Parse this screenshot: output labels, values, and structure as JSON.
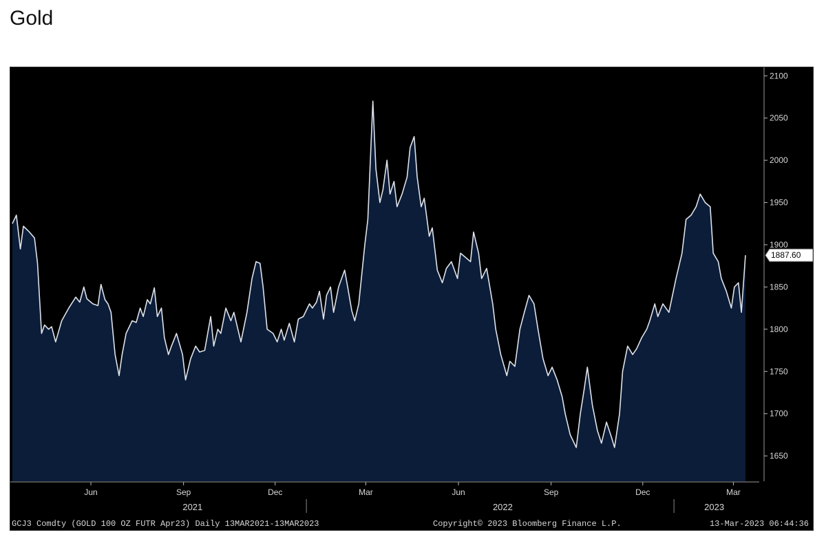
{
  "page": {
    "title": "Gold"
  },
  "chart_data": {
    "type": "area",
    "title": "Gold",
    "series": [
      {
        "values": [
          [
            "2021-03-15",
            1925
          ],
          [
            "2021-03-19",
            1935
          ],
          [
            "2021-03-23",
            1895
          ],
          [
            "2021-03-26",
            1922
          ],
          [
            "2021-04-01",
            1915
          ],
          [
            "2021-04-06",
            1908
          ],
          [
            "2021-04-09",
            1878
          ],
          [
            "2021-04-13",
            1795
          ],
          [
            "2021-04-16",
            1805
          ],
          [
            "2021-04-20",
            1800
          ],
          [
            "2021-04-23",
            1803
          ],
          [
            "2021-04-27",
            1785
          ],
          [
            "2021-05-03",
            1810
          ],
          [
            "2021-05-10",
            1825
          ],
          [
            "2021-05-17",
            1838
          ],
          [
            "2021-05-21",
            1832
          ],
          [
            "2021-05-25",
            1850
          ],
          [
            "2021-05-28",
            1836
          ],
          [
            "2021-06-03",
            1830
          ],
          [
            "2021-06-08",
            1828
          ],
          [
            "2021-06-11",
            1853
          ],
          [
            "2021-06-15",
            1835
          ],
          [
            "2021-06-18",
            1830
          ],
          [
            "2021-06-21",
            1820
          ],
          [
            "2021-06-25",
            1770
          ],
          [
            "2021-06-29",
            1745
          ],
          [
            "2021-07-02",
            1770
          ],
          [
            "2021-07-06",
            1795
          ],
          [
            "2021-07-12",
            1810
          ],
          [
            "2021-07-16",
            1808
          ],
          [
            "2021-07-20",
            1825
          ],
          [
            "2021-07-23",
            1815
          ],
          [
            "2021-07-27",
            1835
          ],
          [
            "2021-07-30",
            1830
          ],
          [
            "2021-08-03",
            1849
          ],
          [
            "2021-08-06",
            1815
          ],
          [
            "2021-08-10",
            1825
          ],
          [
            "2021-08-13",
            1790
          ],
          [
            "2021-08-17",
            1770
          ],
          [
            "2021-08-20",
            1780
          ],
          [
            "2021-08-25",
            1795
          ],
          [
            "2021-08-31",
            1770
          ],
          [
            "2021-09-03",
            1740
          ],
          [
            "2021-09-08",
            1765
          ],
          [
            "2021-09-13",
            1780
          ],
          [
            "2021-09-17",
            1773
          ],
          [
            "2021-09-22",
            1775
          ],
          [
            "2021-09-28",
            1815
          ],
          [
            "2021-10-01",
            1780
          ],
          [
            "2021-10-05",
            1800
          ],
          [
            "2021-10-08",
            1795
          ],
          [
            "2021-10-13",
            1825
          ],
          [
            "2021-10-18",
            1810
          ],
          [
            "2021-10-21",
            1820
          ],
          [
            "2021-10-25",
            1800
          ],
          [
            "2021-10-28",
            1785
          ],
          [
            "2021-11-03",
            1820
          ],
          [
            "2021-11-08",
            1860
          ],
          [
            "2021-11-12",
            1880
          ],
          [
            "2021-11-16",
            1878
          ],
          [
            "2021-11-19",
            1850
          ],
          [
            "2021-11-23",
            1800
          ],
          [
            "2021-11-29",
            1795
          ],
          [
            "2021-12-03",
            1785
          ],
          [
            "2021-12-07",
            1800
          ],
          [
            "2021-12-10",
            1787
          ],
          [
            "2021-12-15",
            1807
          ],
          [
            "2021-12-20",
            1785
          ],
          [
            "2021-12-24",
            1812
          ],
          [
            "2021-12-29",
            1815
          ],
          [
            "2022-01-04",
            1830
          ],
          [
            "2022-01-07",
            1825
          ],
          [
            "2022-01-11",
            1832
          ],
          [
            "2022-01-14",
            1845
          ],
          [
            "2022-01-18",
            1812
          ],
          [
            "2022-01-21",
            1840
          ],
          [
            "2022-01-25",
            1850
          ],
          [
            "2022-01-28",
            1820
          ],
          [
            "2022-02-02",
            1850
          ],
          [
            "2022-02-08",
            1870
          ],
          [
            "2022-02-11",
            1850
          ],
          [
            "2022-02-15",
            1822
          ],
          [
            "2022-02-18",
            1810
          ],
          [
            "2022-02-22",
            1830
          ],
          [
            "2022-02-28",
            1900
          ],
          [
            "2022-03-03",
            1930
          ],
          [
            "2022-03-08",
            2070
          ],
          [
            "2022-03-11",
            1990
          ],
          [
            "2022-03-15",
            1950
          ],
          [
            "2022-03-18",
            1965
          ],
          [
            "2022-03-22",
            2000
          ],
          [
            "2022-03-25",
            1960
          ],
          [
            "2022-03-29",
            1975
          ],
          [
            "2022-04-01",
            1945
          ],
          [
            "2022-04-06",
            1960
          ],
          [
            "2022-04-11",
            1980
          ],
          [
            "2022-04-14",
            2015
          ],
          [
            "2022-04-18",
            2028
          ],
          [
            "2022-04-21",
            1980
          ],
          [
            "2022-04-25",
            1945
          ],
          [
            "2022-04-28",
            1955
          ],
          [
            "2022-05-03",
            1910
          ],
          [
            "2022-05-06",
            1920
          ],
          [
            "2022-05-11",
            1870
          ],
          [
            "2022-05-16",
            1855
          ],
          [
            "2022-05-20",
            1872
          ],
          [
            "2022-05-25",
            1880
          ],
          [
            "2022-05-31",
            1860
          ],
          [
            "2022-06-03",
            1890
          ],
          [
            "2022-06-08",
            1885
          ],
          [
            "2022-06-13",
            1880
          ],
          [
            "2022-06-16",
            1915
          ],
          [
            "2022-06-21",
            1890
          ],
          [
            "2022-06-24",
            1860
          ],
          [
            "2022-06-29",
            1872
          ],
          [
            "2022-07-05",
            1830
          ],
          [
            "2022-07-08",
            1800
          ],
          [
            "2022-07-13",
            1770
          ],
          [
            "2022-07-19",
            1745
          ],
          [
            "2022-07-22",
            1762
          ],
          [
            "2022-07-27",
            1756
          ],
          [
            "2022-08-01",
            1800
          ],
          [
            "2022-08-05",
            1818
          ],
          [
            "2022-08-10",
            1840
          ],
          [
            "2022-08-15",
            1830
          ],
          [
            "2022-08-19",
            1800
          ],
          [
            "2022-08-24",
            1765
          ],
          [
            "2022-08-29",
            1745
          ],
          [
            "2022-09-02",
            1755
          ],
          [
            "2022-09-07",
            1740
          ],
          [
            "2022-09-12",
            1720
          ],
          [
            "2022-09-15",
            1700
          ],
          [
            "2022-09-20",
            1675
          ],
          [
            "2022-09-26",
            1660
          ],
          [
            "2022-09-30",
            1700
          ],
          [
            "2022-10-04",
            1730
          ],
          [
            "2022-10-07",
            1755
          ],
          [
            "2022-10-12",
            1710
          ],
          [
            "2022-10-17",
            1680
          ],
          [
            "2022-10-21",
            1665
          ],
          [
            "2022-10-26",
            1690
          ],
          [
            "2022-10-31",
            1672
          ],
          [
            "2022-11-03",
            1660
          ],
          [
            "2022-11-08",
            1700
          ],
          [
            "2022-11-11",
            1750
          ],
          [
            "2022-11-16",
            1780
          ],
          [
            "2022-11-21",
            1770
          ],
          [
            "2022-11-25",
            1777
          ],
          [
            "2022-11-30",
            1790
          ],
          [
            "2022-12-05",
            1800
          ],
          [
            "2022-12-08",
            1810
          ],
          [
            "2022-12-13",
            1830
          ],
          [
            "2022-12-16",
            1815
          ],
          [
            "2022-12-21",
            1830
          ],
          [
            "2022-12-27",
            1820
          ],
          [
            "2023-01-03",
            1860
          ],
          [
            "2023-01-09",
            1890
          ],
          [
            "2023-01-13",
            1930
          ],
          [
            "2023-01-18",
            1935
          ],
          [
            "2023-01-23",
            1945
          ],
          [
            "2023-01-27",
            1960
          ],
          [
            "2023-02-01",
            1950
          ],
          [
            "2023-02-06",
            1945
          ],
          [
            "2023-02-09",
            1890
          ],
          [
            "2023-02-14",
            1880
          ],
          [
            "2023-02-17",
            1860
          ],
          [
            "2023-02-22",
            1845
          ],
          [
            "2023-02-27",
            1825
          ],
          [
            "2023-03-02",
            1850
          ],
          [
            "2023-03-06",
            1855
          ],
          [
            "2023-03-09",
            1820
          ],
          [
            "2023-03-13",
            1887.6
          ]
        ]
      }
    ],
    "x_range": [
      "2021-03-13",
      "2023-03-13"
    ],
    "ylim": [
      1620,
      2110
    ],
    "y_ticks": [
      1650,
      1700,
      1750,
      1800,
      1850,
      1900,
      1950,
      2000,
      2050,
      2100
    ],
    "x_month_ticks": [
      {
        "label": "Jun",
        "date": "2021-06-01"
      },
      {
        "label": "Sep",
        "date": "2021-09-01"
      },
      {
        "label": "Dec",
        "date": "2021-12-01"
      },
      {
        "label": "Mar",
        "date": "2022-03-01"
      },
      {
        "label": "Jun",
        "date": "2022-06-01"
      },
      {
        "label": "Sep",
        "date": "2022-09-01"
      },
      {
        "label": "Dec",
        "date": "2022-12-01"
      },
      {
        "label": "Mar",
        "date": "2023-03-01"
      }
    ],
    "x_year_labels": [
      {
        "label": "2021",
        "date": "2021-09-10"
      },
      {
        "label": "2022",
        "date": "2022-07-15"
      },
      {
        "label": "2023",
        "date": "2023-02-10"
      }
    ],
    "year_boundaries": [
      "2022-01-01",
      "2023-01-01"
    ],
    "last_value_label": "1887.60",
    "colors": {
      "area_fill": "#0c1d3a",
      "line": "#dfe3ea",
      "background": "#000000",
      "text": "#d8d8d8"
    },
    "grid": false
  },
  "footer": {
    "security": "GCJ3 Comdty (GOLD 100 OZ FUTR  Apr23)  Daily 13MAR2021-13MAR2023",
    "copyright": "Copyright© 2023 Bloomberg Finance L.P.",
    "timestamp": "13-Mar-2023 06:44:36"
  }
}
